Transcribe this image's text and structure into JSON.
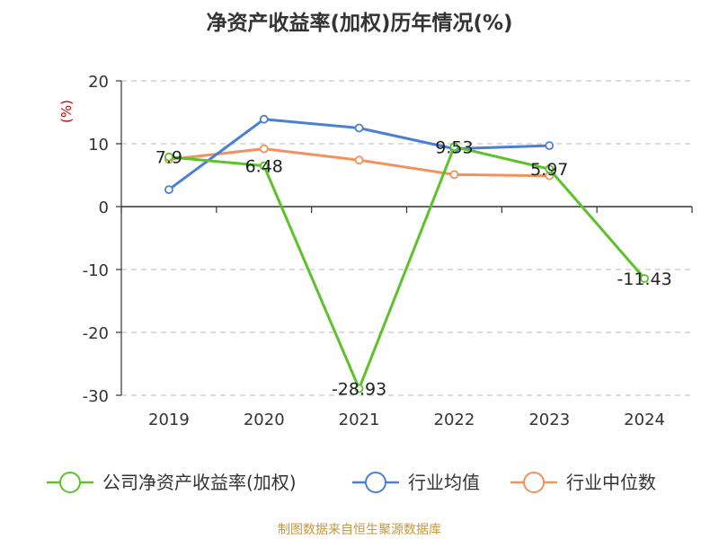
{
  "chart_data": {
    "type": "line",
    "title": "净资产收益率(加权)历年情况(%)",
    "ylabel": "(%)",
    "categories": [
      "2019",
      "2020",
      "2021",
      "2022",
      "2023",
      "2024"
    ],
    "yticks": [
      "20",
      "10",
      "0",
      "-10",
      "-20",
      "-30"
    ],
    "ylim": [
      -30,
      20
    ],
    "grid": true,
    "legend_position": "bottom",
    "series": [
      {
        "name": "公司净资产收益率(加权)",
        "color": "#5cc12a",
        "values": [
          7.9,
          6.48,
          -28.93,
          9.53,
          5.97,
          -11.43
        ],
        "labels": [
          "7.9",
          "6.48",
          "-28.93",
          "9.53",
          "5.97",
          "-11.43"
        ]
      },
      {
        "name": "行业均值",
        "color": "#4a7fd6",
        "values": [
          2.7,
          13.9,
          12.5,
          9.2,
          9.7,
          null
        ]
      },
      {
        "name": "行业中位数",
        "color": "#f2915a",
        "values": [
          7.5,
          9.2,
          7.4,
          5.1,
          4.9,
          null
        ]
      }
    ]
  },
  "source": "制图数据来自恒生聚源数据库"
}
